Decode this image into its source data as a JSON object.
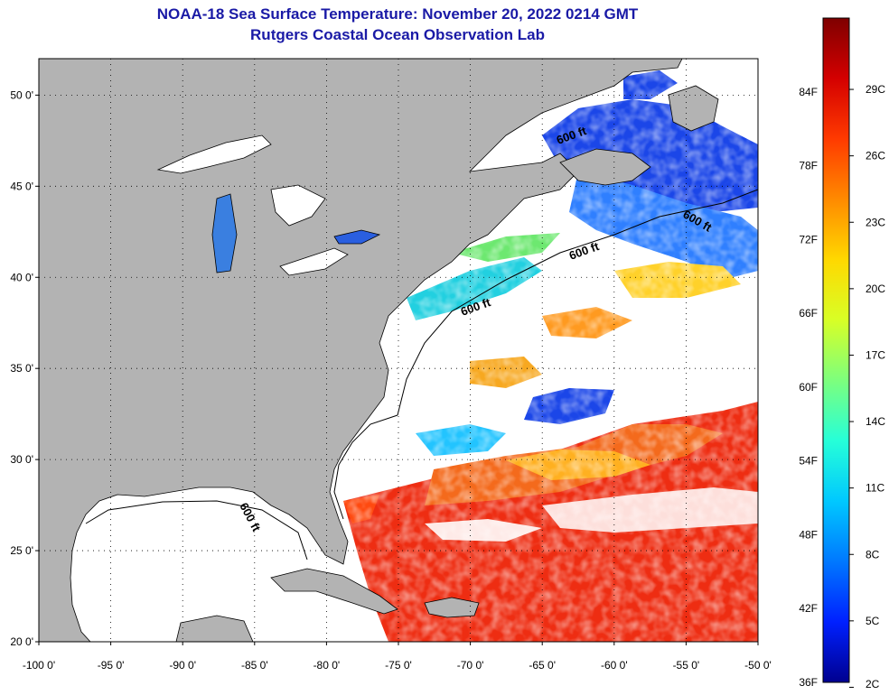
{
  "header": {
    "title": "NOAA-18 Sea Surface Temperature:  November 20, 2022 0214 GMT",
    "subtitle": "Rutgers Coastal Ocean Observation Lab"
  },
  "map": {
    "type": "sea-surface-temperature",
    "lon_range": [
      -100,
      -50
    ],
    "lat_range": [
      20,
      52
    ],
    "lat_labels": [
      "50 0'",
      "45 0'",
      "40 0'",
      "35 0'",
      "30 0'",
      "25 0'",
      "20 0'"
    ],
    "lat_values": [
      50,
      45,
      40,
      35,
      30,
      25,
      20
    ],
    "lon_labels": [
      "-100 0'",
      "-95 0'",
      "-90 0'",
      "-85 0'",
      "-80 0'",
      "-75 0'",
      "-70 0'",
      "-65 0'",
      "-60 0'",
      "-55 0'",
      "-50 0'"
    ],
    "lon_values": [
      -100,
      -95,
      -90,
      -85,
      -80,
      -75,
      -70,
      -65,
      -60,
      -55,
      -50
    ],
    "contour_labels": [
      "600 ft",
      "600 ft",
      "600 ft",
      "600 ft",
      "600 ft"
    ],
    "colors": {
      "land": "#b3b3b3",
      "cloud": "#ffffff",
      "frame": "#000000"
    }
  },
  "colorbar": {
    "fahrenheit_labels": [
      "84F",
      "78F",
      "72F",
      "66F",
      "60F",
      "54F",
      "48F",
      "42F",
      "36F"
    ],
    "celsius_labels": [
      "29C",
      "26C",
      "23C",
      "20C",
      "17C",
      "14C",
      "11C",
      "8C",
      "5C",
      "2C"
    ],
    "stops": [
      "#7f0000",
      "#d40000",
      "#ff3a00",
      "#ff8a00",
      "#ffd800",
      "#d8ff26",
      "#7dff7d",
      "#26ffd8",
      "#00c8ff",
      "#0078ff",
      "#0020ff",
      "#00008f"
    ]
  }
}
